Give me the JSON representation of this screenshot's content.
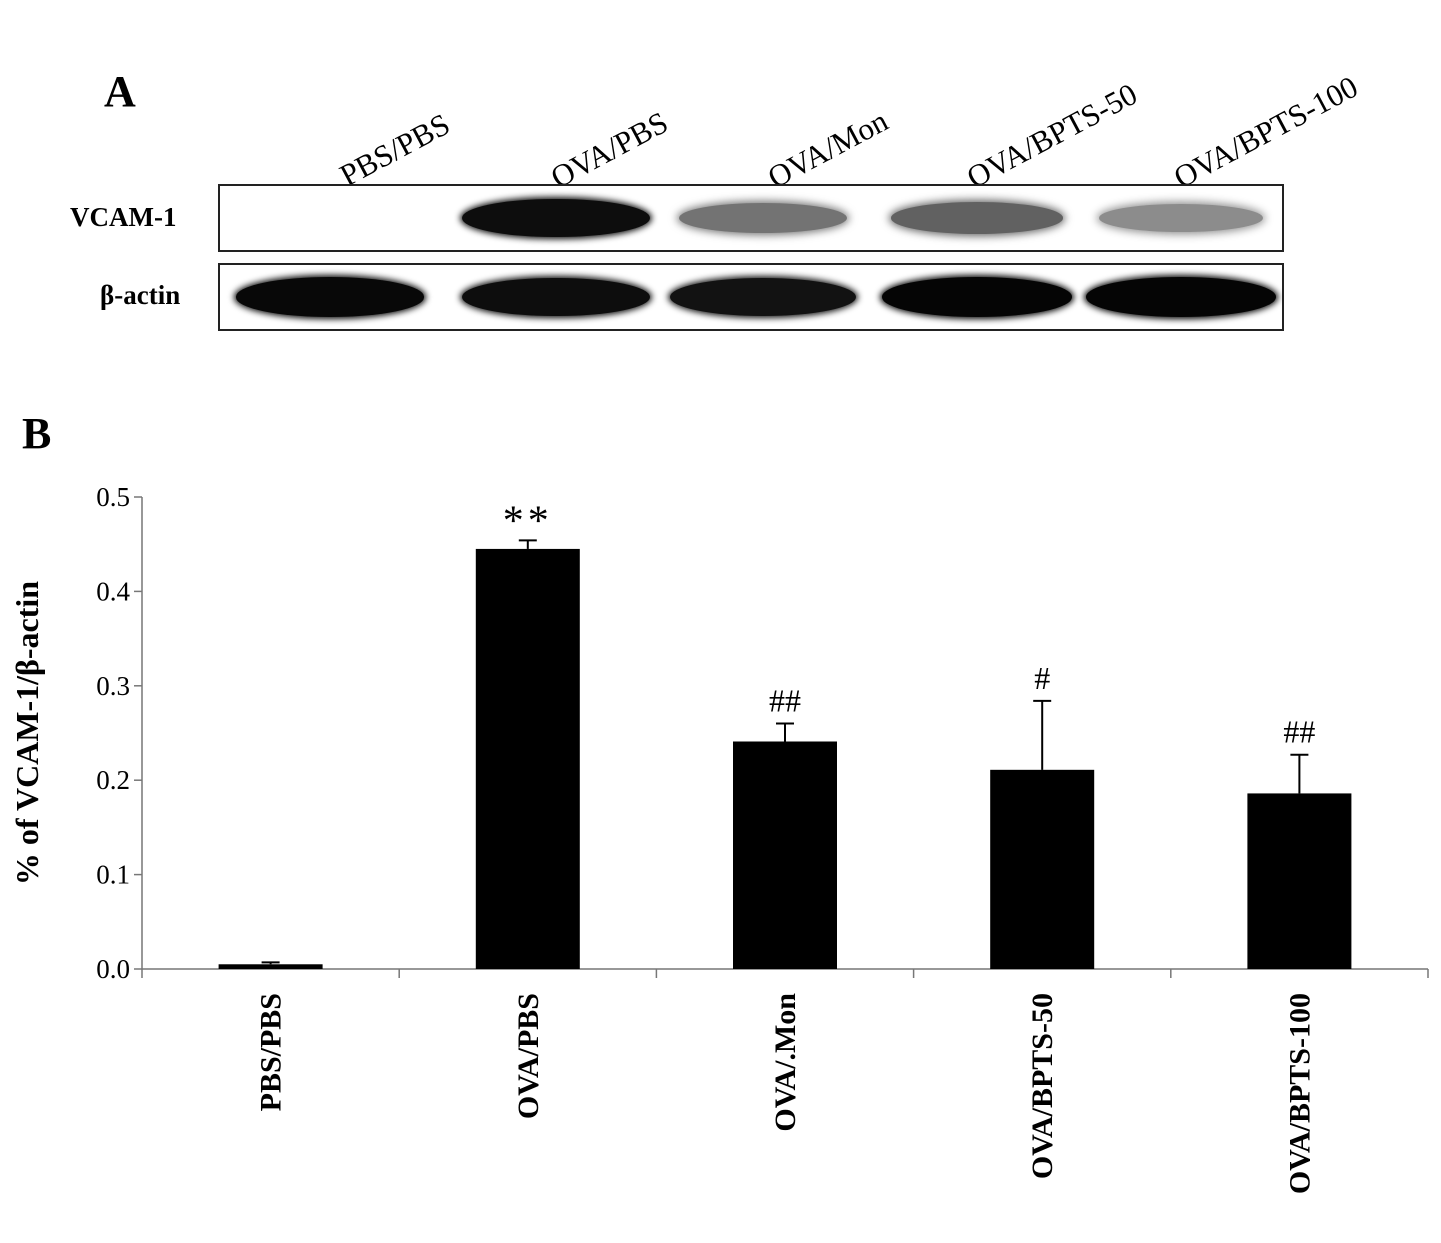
{
  "panel_a": {
    "letter": "A",
    "lane_labels": [
      "PBS/PBS",
      "OVA/PBS",
      "OVA/Mon",
      "OVA/BPTS-50",
      "OVA/BPTS-100"
    ],
    "blots": [
      {
        "label": "VCAM-1",
        "band_intensity": [
          0.0,
          0.95,
          0.55,
          0.62,
          0.45
        ]
      },
      {
        "label": "β-actin",
        "band_intensity": [
          0.97,
          0.95,
          0.93,
          0.98,
          0.98
        ]
      }
    ]
  },
  "panel_b": {
    "letter": "B"
  },
  "chart_data": {
    "type": "bar",
    "categories": [
      "PBS/PBS",
      "OVA/PBS",
      "OVA/.Mon",
      "OVA/BPTS-50",
      "OVA/BPTS-100"
    ],
    "values": [
      0.005,
      0.445,
      0.241,
      0.211,
      0.186
    ],
    "error_bars": [
      0.002,
      0.009,
      0.019,
      0.073,
      0.041
    ],
    "annotations": [
      "",
      "**",
      "##",
      "#",
      "##"
    ],
    "ylabel": "% of VCAM-1/β-actin",
    "xlabel": "",
    "ylim": [
      0,
      0.5
    ],
    "yticks": [
      "0.0",
      "0.1",
      "0.2",
      "0.3",
      "0.4",
      "0.5"
    ],
    "grid": false,
    "bar_color": "#000000"
  }
}
